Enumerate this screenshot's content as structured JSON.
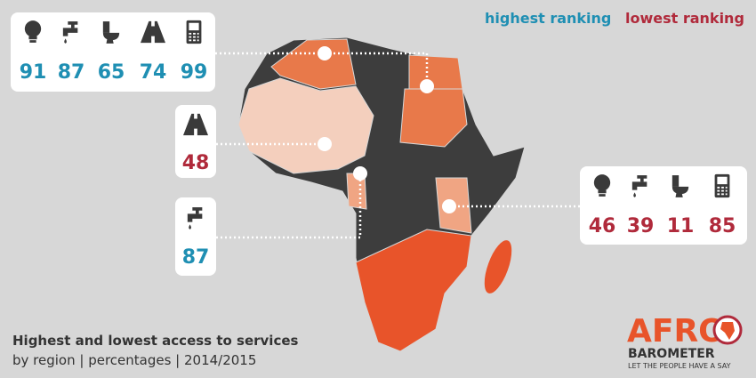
{
  "legend": {
    "highest": "highest ranking",
    "lowest": "lowest ranking",
    "highest_color": "#1f8fb3",
    "lowest_color": "#b02a3b"
  },
  "callouts": [
    {
      "values": [
        91,
        87,
        65,
        74,
        99
      ],
      "color": "#1f8fb3"
    },
    {
      "values": [
        48
      ],
      "color": "#b02a3b"
    },
    {
      "values": [
        87
      ],
      "color": "#1f8fb3"
    },
    {
      "values": [
        46,
        39,
        11,
        85
      ],
      "color": "#b02a3b"
    }
  ],
  "caption": {
    "title": "Highest and lowest access to services",
    "subtitle": "by region | percentages | 2014/2015"
  },
  "logo": {
    "name": "AFRO",
    "sub": "BAROMETER",
    "tagline": "LET THE PEOPLE HAVE A SAY"
  }
}
